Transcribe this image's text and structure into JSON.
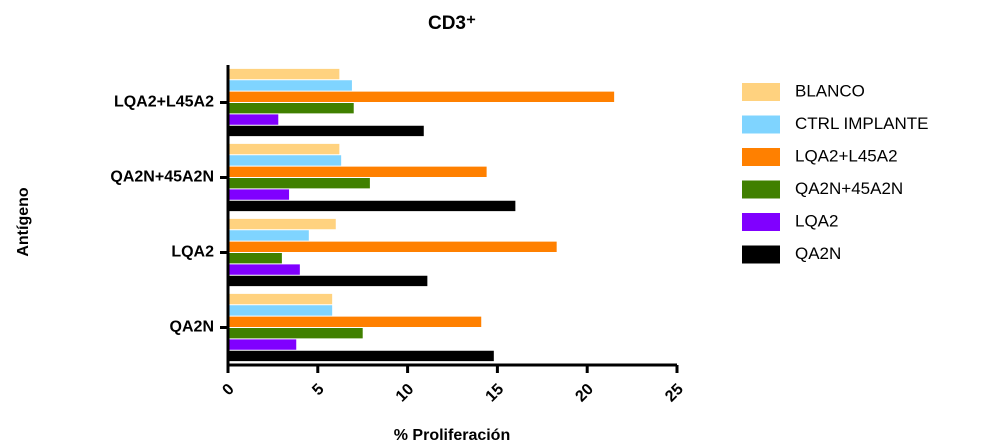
{
  "chart_data": {
    "type": "barh",
    "title": "CD3⁺",
    "xlabel": "% Proliferación",
    "ylabel": "Antígeno",
    "categories": [
      "QA2N",
      "LQA2",
      "QA2N+45A2N",
      "LQA2+L45A2"
    ],
    "series": [
      {
        "name": "BLANCO",
        "color": "#ffd27f",
        "values": [
          5.8,
          6.0,
          6.2,
          6.2
        ]
      },
      {
        "name": "CTRL IMPLANTE",
        "color": "#7fd4ff",
        "values": [
          5.8,
          4.5,
          6.3,
          6.9
        ]
      },
      {
        "name": "LQA2+L45A2",
        "color": "#ff8000",
        "values": [
          14.1,
          18.3,
          14.4,
          21.5
        ]
      },
      {
        "name": "QA2N+45A2N",
        "color": "#408000",
        "values": [
          7.5,
          3.0,
          7.9,
          7.0
        ]
      },
      {
        "name": "LQA2",
        "color": "#8000ff",
        "values": [
          3.8,
          4.0,
          3.4,
          2.8
        ]
      },
      {
        "name": "QA2N",
        "color": "#000000",
        "values": [
          14.8,
          11.1,
          16.0,
          10.9
        ]
      }
    ],
    "xlim": [
      0,
      25
    ],
    "xticks": [
      0,
      5,
      10,
      15,
      20,
      25
    ],
    "legend": "right"
  }
}
